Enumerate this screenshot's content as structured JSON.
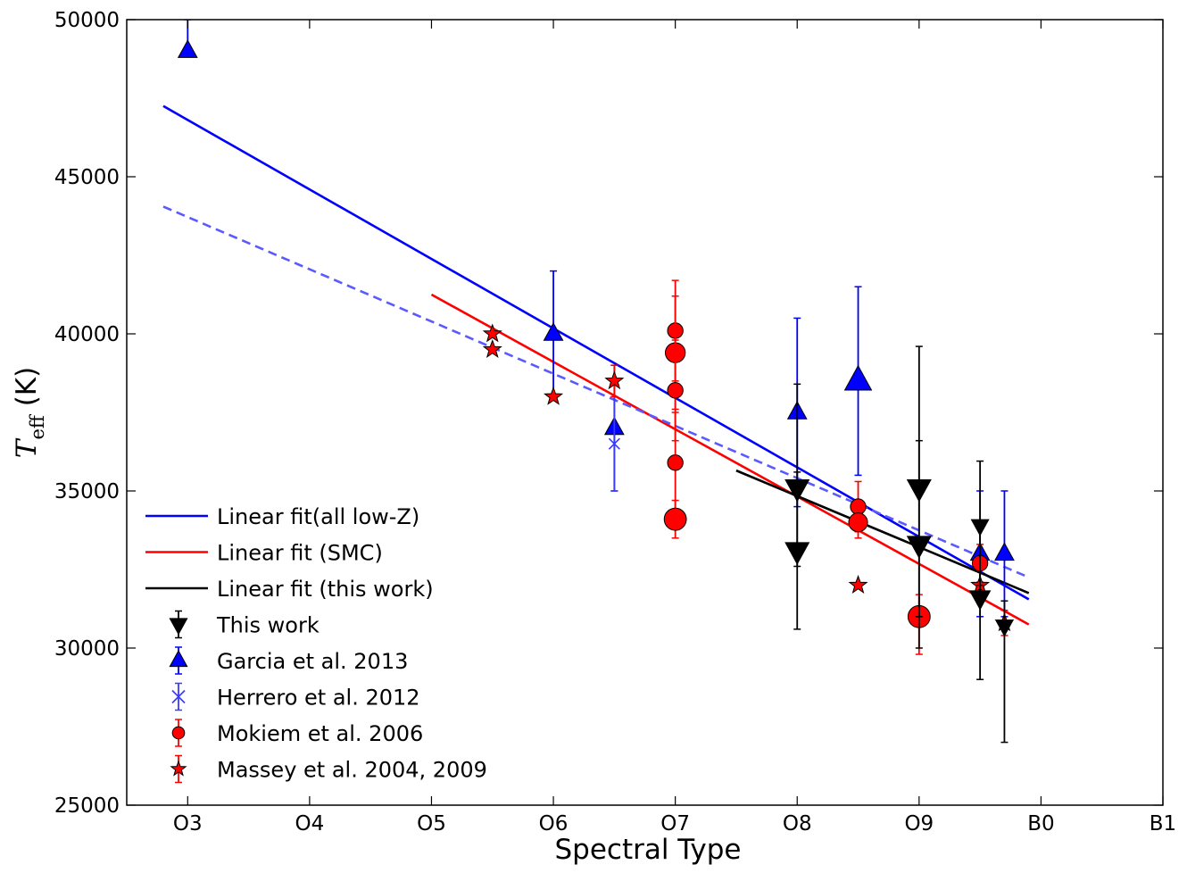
{
  "chart_data": {
    "type": "scatter",
    "title": "",
    "xlabel": "Spectral Type",
    "ylabel_main": "T",
    "ylabel_sub": "eff",
    "ylabel_unit": " (K)",
    "xlim": [
      2.5,
      11.0
    ],
    "ylim": [
      25000,
      50000
    ],
    "x_ticks": [
      {
        "value": 3,
        "label": "O3"
      },
      {
        "value": 4,
        "label": "O4"
      },
      {
        "value": 5,
        "label": "O5"
      },
      {
        "value": 6,
        "label": "O6"
      },
      {
        "value": 7,
        "label": "O7"
      },
      {
        "value": 8,
        "label": "O8"
      },
      {
        "value": 9,
        "label": "O9"
      },
      {
        "value": 10,
        "label": "B0"
      },
      {
        "value": 11,
        "label": "B1"
      }
    ],
    "y_ticks": [
      {
        "value": 25000,
        "label": "25000"
      },
      {
        "value": 30000,
        "label": "30000"
      },
      {
        "value": 35000,
        "label": "35000"
      },
      {
        "value": 40000,
        "label": "40000"
      },
      {
        "value": 45000,
        "label": "45000"
      },
      {
        "value": 50000,
        "label": "50000"
      }
    ],
    "grid": false,
    "legend_position": "lower-left",
    "fit_lines": [
      {
        "name": "Linear fit(all low-Z)",
        "color": "#0000ff",
        "dashed": false,
        "x": [
          2.8,
          9.9
        ],
        "y": [
          47250,
          31550
        ]
      },
      {
        "name": "Linear fit (SMC)",
        "color": "#ff0000",
        "dashed": false,
        "x": [
          5.0,
          9.9
        ],
        "y": [
          41250,
          30750
        ]
      },
      {
        "name": "Linear fit (this work)",
        "color": "#000000",
        "dashed": false,
        "x": [
          7.5,
          9.9
        ],
        "y": [
          35650,
          31750
        ]
      },
      {
        "name": "",
        "color": "#5a5aff",
        "dashed": true,
        "x": [
          2.8,
          9.9
        ],
        "y": [
          44050,
          32250
        ]
      }
    ],
    "series": [
      {
        "name": "Garcia et al. 2013",
        "marker": "triangle-up",
        "color": "#0000ff",
        "points": [
          {
            "x": 3.0,
            "y": 49000,
            "ylo": 49000,
            "yhi": 50000,
            "size": 12
          },
          {
            "x": 6.0,
            "y": 40000,
            "ylo": 38000,
            "yhi": 42000,
            "size": 12
          },
          {
            "x": 6.5,
            "y": 37000,
            "ylo": 35000,
            "yhi": 39000,
            "size": 12
          },
          {
            "x": 8.0,
            "y": 37500,
            "ylo": 34500,
            "yhi": 40500,
            "size": 12
          },
          {
            "x": 8.5,
            "y": 38500,
            "ylo": 35500,
            "yhi": 41500,
            "size": 17
          },
          {
            "x": 9.5,
            "y": 33000,
            "ylo": 31000,
            "yhi": 35000,
            "size": 12
          },
          {
            "x": 9.7,
            "y": 33000,
            "ylo": 31000,
            "yhi": 35000,
            "size": 12
          }
        ]
      },
      {
        "name": "Herrero et al. 2012",
        "marker": "x",
        "color": "#3a3aff",
        "points": [
          {
            "x": 6.5,
            "y": 36500,
            "ylo": 35000,
            "yhi": 38000,
            "size": 12
          }
        ]
      },
      {
        "name": "Mokiem et al. 2006",
        "marker": "circle",
        "color": "#ff0000",
        "points": [
          {
            "x": 7.0,
            "y": 40100,
            "ylo": 38500,
            "yhi": 41700,
            "size": 14
          },
          {
            "x": 7.0,
            "y": 39400,
            "ylo": 37600,
            "yhi": 41200,
            "size": 18
          },
          {
            "x": 7.0,
            "y": 38200,
            "ylo": 36600,
            "yhi": 39800,
            "size": 14
          },
          {
            "x": 7.0,
            "y": 35900,
            "ylo": 34300,
            "yhi": 37500,
            "size": 14
          },
          {
            "x": 7.0,
            "y": 34100,
            "ylo": 33500,
            "yhi": 34700,
            "size": 20
          },
          {
            "x": 8.5,
            "y": 34500,
            "ylo": 33700,
            "yhi": 35300,
            "size": 14
          },
          {
            "x": 8.5,
            "y": 34000,
            "ylo": 33500,
            "yhi": 34500,
            "size": 17
          },
          {
            "x": 9.0,
            "y": 31000,
            "ylo": 29800,
            "yhi": 31700,
            "size": 20
          },
          {
            "x": 9.5,
            "y": 32700,
            "ylo": 32100,
            "yhi": 33300,
            "size": 14
          }
        ]
      },
      {
        "name": "Massey et al. 2004, 2009",
        "marker": "star",
        "color": "#ff0000",
        "points": [
          {
            "x": 5.5,
            "y": 40000,
            "ylo": 40000,
            "yhi": 40000,
            "size": 13
          },
          {
            "x": 5.5,
            "y": 39500,
            "ylo": 39500,
            "yhi": 39500,
            "size": 13
          },
          {
            "x": 6.0,
            "y": 38000,
            "ylo": 38000,
            "yhi": 38000,
            "size": 13
          },
          {
            "x": 6.5,
            "y": 38500,
            "ylo": 38000,
            "yhi": 39000,
            "size": 13
          },
          {
            "x": 8.5,
            "y": 32000,
            "ylo": 32000,
            "yhi": 32000,
            "size": 13
          },
          {
            "x": 9.5,
            "y": 32000,
            "ylo": 31500,
            "yhi": 32500,
            "size": 13
          },
          {
            "x": 9.7,
            "y": 30800,
            "ylo": 30400,
            "yhi": 31200,
            "size": 13
          }
        ]
      },
      {
        "name": "This work",
        "marker": "triangle-down",
        "color": "#000000",
        "points": [
          {
            "x": 8.0,
            "y": 35100,
            "ylo": 32600,
            "yhi": 38400,
            "size": 15
          },
          {
            "x": 8.0,
            "y": 33100,
            "ylo": 30600,
            "yhi": 35600,
            "size": 15
          },
          {
            "x": 9.0,
            "y": 35100,
            "ylo": 31000,
            "yhi": 39600,
            "size": 15
          },
          {
            "x": 9.0,
            "y": 33300,
            "ylo": 30000,
            "yhi": 36600,
            "size": 15
          },
          {
            "x": 9.5,
            "y": 33900,
            "ylo": 32000,
            "yhi": 35950,
            "size": 11
          },
          {
            "x": 9.5,
            "y": 31600,
            "ylo": 29000,
            "yhi": 34000,
            "size": 13
          },
          {
            "x": 9.7,
            "y": 30700,
            "ylo": 27000,
            "yhi": 31500,
            "size": 11
          }
        ]
      }
    ],
    "legend": [
      {
        "kind": "line",
        "label": "Linear fit(all low-Z)",
        "color": "#0000ff"
      },
      {
        "kind": "line",
        "label": "Linear fit (SMC)",
        "color": "#ff0000"
      },
      {
        "kind": "line",
        "label": "Linear fit (this work)",
        "color": "#000000"
      },
      {
        "kind": "marker",
        "marker": "triangle-down",
        "label": "This work",
        "color": "#000000"
      },
      {
        "kind": "marker",
        "marker": "triangle-up",
        "label": "Garcia et al. 2013",
        "color": "#0000ff"
      },
      {
        "kind": "marker",
        "marker": "x",
        "label": "Herrero et al. 2012",
        "color": "#3a3aff"
      },
      {
        "kind": "marker",
        "marker": "circle",
        "label": "Mokiem et al. 2006",
        "color": "#ff0000"
      },
      {
        "kind": "marker",
        "marker": "star",
        "label": "Massey et al. 2004, 2009",
        "color": "#ff0000"
      }
    ]
  }
}
